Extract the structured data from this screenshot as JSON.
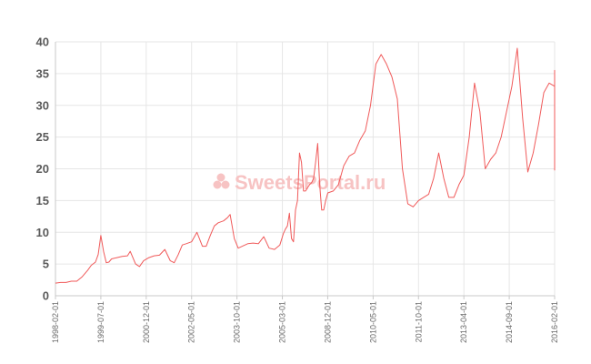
{
  "chart_data": {
    "type": "line",
    "y_ticks": [
      0,
      5,
      10,
      15,
      20,
      25,
      30,
      35,
      40
    ],
    "ylim": [
      0,
      40
    ],
    "xlim": [
      "1998-02-01",
      "2016-02-01"
    ],
    "x_ticks": [
      "1998-02-01",
      "1999-07-01",
      "2000-12-01",
      "2002-05-01",
      "2003-10-01",
      "2005-03-01",
      "2008-12-01",
      "2010-05-01",
      "2011-10-01",
      "2013-04-01",
      "2014-09-01",
      "2016-02-01"
    ],
    "grid": true,
    "watermark": "SweetsPortal.ru",
    "colors": {
      "series": "#f05a5a",
      "watermark": "#f7c3c3"
    },
    "series": [
      {
        "points": [
          [
            "1998-02-01",
            2.0
          ],
          [
            "1998-04-01",
            2.1
          ],
          [
            "1998-06-01",
            2.1
          ],
          [
            "1998-08-01",
            2.3
          ],
          [
            "1998-10-01",
            2.3
          ],
          [
            "1998-12-01",
            3.0
          ],
          [
            "1999-02-01",
            4.0
          ],
          [
            "1999-03-15",
            4.8
          ],
          [
            "1999-05-01",
            5.3
          ],
          [
            "1999-06-01",
            6.5
          ],
          [
            "1999-07-01",
            9.5
          ],
          [
            "1999-08-01",
            7.0
          ],
          [
            "1999-09-01",
            5.2
          ],
          [
            "1999-10-01",
            5.3
          ],
          [
            "1999-11-01",
            5.8
          ],
          [
            "2000-01-01",
            6.0
          ],
          [
            "2000-03-01",
            6.2
          ],
          [
            "2000-05-01",
            6.3
          ],
          [
            "2000-06-01",
            7.0
          ],
          [
            "2000-08-01",
            5.0
          ],
          [
            "2000-09-15",
            4.6
          ],
          [
            "2000-11-01",
            5.5
          ],
          [
            "2001-01-01",
            6.0
          ],
          [
            "2001-03-01",
            6.3
          ],
          [
            "2001-05-01",
            6.4
          ],
          [
            "2001-07-01",
            7.3
          ],
          [
            "2001-09-01",
            5.5
          ],
          [
            "2001-10-15",
            5.2
          ],
          [
            "2001-12-01",
            6.5
          ],
          [
            "2002-01-15",
            8.0
          ],
          [
            "2002-03-01",
            8.2
          ],
          [
            "2002-05-01",
            8.5
          ],
          [
            "2002-07-01",
            10.0
          ],
          [
            "2002-09-01",
            7.8
          ],
          [
            "2002-10-15",
            7.8
          ],
          [
            "2002-12-01",
            9.5
          ],
          [
            "2003-01-15",
            11.0
          ],
          [
            "2003-03-01",
            11.5
          ],
          [
            "2003-05-01",
            11.8
          ],
          [
            "2003-06-15",
            12.3
          ],
          [
            "2003-07-15",
            12.8
          ],
          [
            "2003-09-01",
            9.0
          ],
          [
            "2003-10-15",
            7.5
          ],
          [
            "2003-12-01",
            7.8
          ],
          [
            "2004-02-01",
            8.2
          ],
          [
            "2004-04-01",
            8.3
          ],
          [
            "2004-06-01",
            8.2
          ],
          [
            "2004-08-01",
            9.3
          ],
          [
            "2004-10-01",
            7.5
          ],
          [
            "2004-12-01",
            7.3
          ],
          [
            "2005-02-01",
            8.0
          ],
          [
            "2005-04-01",
            9.8
          ],
          [
            "2005-06-01",
            10.5
          ],
          [
            "2005-08-01",
            11.0
          ],
          [
            "2005-10-01",
            13.0
          ],
          [
            "2005-12-01",
            9.0
          ],
          [
            "2006-02-01",
            8.5
          ],
          [
            "2006-04-01",
            13.5
          ],
          [
            "2006-06-01",
            15.0
          ],
          [
            "2006-08-01",
            22.5
          ],
          [
            "2006-10-01",
            21.0
          ],
          [
            "2006-12-01",
            16.5
          ],
          [
            "2007-02-01",
            16.5
          ],
          [
            "2007-04-01",
            17.0
          ],
          [
            "2007-06-01",
            17.5
          ],
          [
            "2007-08-01",
            17.8
          ],
          [
            "2007-10-01",
            18.5
          ],
          [
            "2007-12-01",
            21.0
          ],
          [
            "2008-02-01",
            24.0
          ],
          [
            "2008-04-01",
            17.5
          ],
          [
            "2008-06-01",
            13.5
          ],
          [
            "2008-08-01",
            13.5
          ],
          [
            "2008-10-01",
            15.0
          ],
          [
            "2008-12-01",
            16.2
          ],
          [
            "2009-02-01",
            16.5
          ],
          [
            "2009-04-01",
            17.5
          ],
          [
            "2009-06-01",
            20.5
          ],
          [
            "2009-08-01",
            22.0
          ],
          [
            "2009-10-01",
            22.5
          ],
          [
            "2009-12-01",
            24.5
          ],
          [
            "2010-02-01",
            26.0
          ],
          [
            "2010-04-01",
            30.0
          ],
          [
            "2010-06-01",
            36.5
          ],
          [
            "2010-08-01",
            38.0
          ],
          [
            "2010-10-01",
            36.5
          ],
          [
            "2010-12-01",
            34.5
          ],
          [
            "2011-02-01",
            31.0
          ],
          [
            "2011-04-01",
            20.0
          ],
          [
            "2011-06-01",
            14.5
          ],
          [
            "2011-08-01",
            14.0
          ],
          [
            "2011-10-01",
            15.0
          ],
          [
            "2011-12-01",
            15.5
          ],
          [
            "2012-02-01",
            16.0
          ],
          [
            "2012-04-01",
            18.5
          ],
          [
            "2012-06-01",
            22.5
          ],
          [
            "2012-08-01",
            18.5
          ],
          [
            "2012-10-01",
            15.5
          ],
          [
            "2012-12-01",
            15.5
          ],
          [
            "2013-02-01",
            17.5
          ],
          [
            "2013-04-01",
            19.0
          ],
          [
            "2013-06-01",
            25.0
          ],
          [
            "2013-08-01",
            33.5
          ],
          [
            "2013-10-01",
            29.0
          ],
          [
            "2013-12-01",
            20.0
          ],
          [
            "2014-02-01",
            21.5
          ],
          [
            "2014-04-01",
            22.5
          ],
          [
            "2014-06-01",
            25.0
          ],
          [
            "2014-08-01",
            29.0
          ],
          [
            "2014-10-01",
            33.0
          ],
          [
            "2014-12-01",
            39.0
          ],
          [
            "2015-02-01",
            28.0
          ],
          [
            "2015-04-01",
            19.5
          ],
          [
            "2015-06-01",
            22.5
          ],
          [
            "2015-08-01",
            27.0
          ],
          [
            "2015-10-01",
            32.0
          ],
          [
            "2015-12-01",
            33.5
          ],
          [
            "2016-02-01",
            33.0
          ],
          [
            "2016-04-01",
            35.5
          ],
          [
            "2016-05-01",
            34.0
          ],
          [
            "2016-06-01",
            25.0
          ],
          [
            "2016-07-01",
            21.0
          ],
          [
            "2016-08-01",
            19.8
          ],
          [
            "2016-09-01",
            19.8
          ],
          [
            "2016-10-01",
            20.0
          ],
          [
            "2016-11-01",
            20.7
          ],
          [
            "2016-12-01",
            20.5
          ]
        ]
      }
    ]
  }
}
